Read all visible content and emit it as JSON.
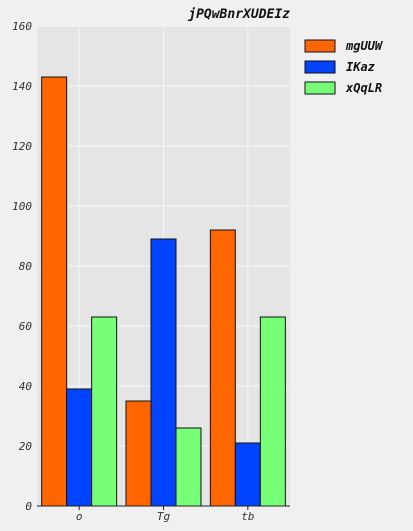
{
  "chart_data": {
    "type": "bar",
    "title": "jPQwBnrXUDEIz",
    "xlabel": "",
    "ylabel": "",
    "categories": [
      "o",
      "Tg",
      "tb"
    ],
    "ylim": [
      0,
      160
    ],
    "yticks": [
      0,
      20,
      40,
      60,
      80,
      100,
      120,
      140,
      160
    ],
    "grid": true,
    "legend_position": "right",
    "series": [
      {
        "name": "mgUUW",
        "color": "#ff6600",
        "values": [
          143,
          35,
          92
        ]
      },
      {
        "name": "IKaz",
        "color": "#0044ff",
        "values": [
          39,
          89,
          21
        ]
      },
      {
        "name": "xQqLR",
        "color": "#77ff77",
        "values": [
          63,
          26,
          63
        ]
      }
    ]
  }
}
